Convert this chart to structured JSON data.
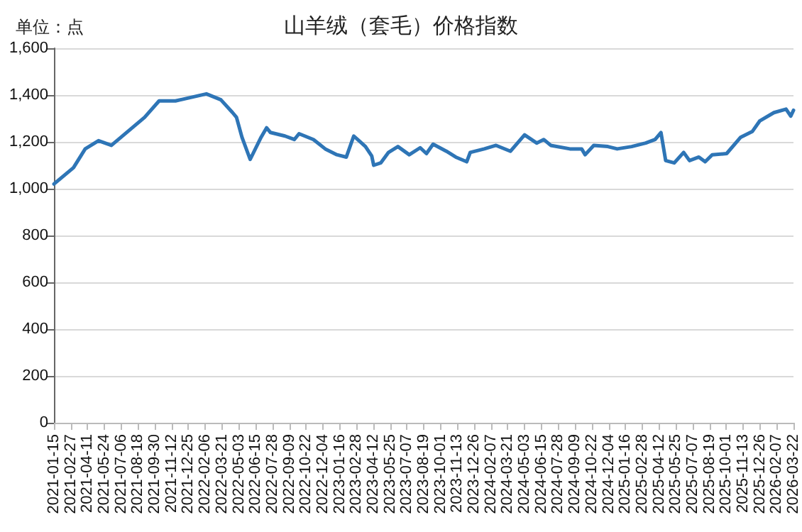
{
  "chart_data": {
    "type": "line",
    "title": "山羊绒（套毛）价格指数",
    "ylabel": "单位：点",
    "x": [
      "2021-01-15",
      "2021-03-06",
      "2021-04-05",
      "2021-05-09",
      "2021-06-11",
      "2021-09-04",
      "2021-10-11",
      "2021-11-22",
      "2022-02-09",
      "2022-03-18",
      "2022-04-17",
      "2022-04-27",
      "2022-05-11",
      "2022-06-01",
      "2022-06-29",
      "2022-07-13",
      "2022-07-23",
      "2022-08-29",
      "2022-09-22",
      "2022-10-04",
      "2022-11-10",
      "2022-12-10",
      "2023-01-09",
      "2023-02-02",
      "2023-02-21",
      "2023-03-23",
      "2023-04-08",
      "2023-04-13",
      "2023-05-01",
      "2023-05-21",
      "2023-06-14",
      "2023-07-13",
      "2023-08-10",
      "2023-08-26",
      "2023-09-12",
      "2023-10-16",
      "2023-11-09",
      "2023-12-07",
      "2023-12-16",
      "2024-01-21",
      "2024-02-20",
      "2024-03-28",
      "2024-05-03",
      "2024-06-03",
      "2024-06-21",
      "2024-07-09",
      "2024-08-27",
      "2024-09-26",
      "2024-10-05",
      "2024-10-27",
      "2024-12-02",
      "2024-12-26",
      "2025-02-01",
      "2025-03-09",
      "2025-04-02",
      "2025-04-17",
      "2025-04-29",
      "2025-05-21",
      "2025-06-14",
      "2025-06-29",
      "2025-07-23",
      "2025-08-08",
      "2025-08-26",
      "2025-10-02",
      "2025-11-07",
      "2025-12-07",
      "2025-12-26",
      "2026-01-31",
      "2026-03-03",
      "2026-03-15",
      "2026-03-22"
    ],
    "series": [
      {
        "color": "#2e75b6",
        "values": [
          1020,
          1090,
          1170,
          1205,
          1185,
          1305,
          1375,
          1375,
          1405,
          1380,
          1325,
          1305,
          1220,
          1125,
          1220,
          1260,
          1240,
          1225,
          1210,
          1235,
          1210,
          1170,
          1145,
          1135,
          1225,
          1180,
          1140,
          1100,
          1110,
          1155,
          1180,
          1145,
          1175,
          1150,
          1190,
          1160,
          1135,
          1115,
          1155,
          1170,
          1185,
          1160,
          1230,
          1195,
          1210,
          1185,
          1170,
          1170,
          1145,
          1185,
          1180,
          1170,
          1180,
          1195,
          1210,
          1240,
          1120,
          1110,
          1155,
          1120,
          1135,
          1115,
          1145,
          1150,
          1220,
          1245,
          1290,
          1325,
          1340,
          1310,
          1335
        ]
      }
    ],
    "xlim": [
      "2021-01-15",
      "2026-03-22"
    ],
    "xticks": [
      "2021-01-15",
      "2021-02-27",
      "2021-04-11",
      "2021-05-24",
      "2021-07-06",
      "2021-08-18",
      "2021-09-30",
      "2021-11-12",
      "2021-12-25",
      "2022-02-06",
      "2022-03-21",
      "2022-05-03",
      "2022-06-15",
      "2022-07-28",
      "2022-09-09",
      "2022-10-22",
      "2022-12-04",
      "2023-01-16",
      "2023-02-28",
      "2023-04-12",
      "2023-05-25",
      "2023-07-07",
      "2023-08-19",
      "2023-10-01",
      "2023-11-13",
      "2023-12-26",
      "2024-02-07",
      "2024-03-21",
      "2024-05-03",
      "2024-06-15",
      "2024-07-28",
      "2024-09-09",
      "2024-10-22",
      "2024-12-04",
      "2025-01-16",
      "2025-02-28",
      "2025-04-12",
      "2025-05-25",
      "2025-07-07",
      "2025-08-19",
      "2025-10-01",
      "2025-11-13",
      "2025-12-26",
      "2026-02-07",
      "2026-03-22"
    ],
    "ylim": [
      0,
      1600
    ],
    "yticks": [
      0,
      {
        "value": 200,
        "label": "200"
      },
      {
        "value": 400,
        "label": "400"
      },
      {
        "value": 600,
        "label": "600"
      },
      {
        "value": 800,
        "label": "800"
      },
      {
        "value": 1000,
        "label": "1,000"
      },
      {
        "value": 1200,
        "label": "1,200"
      },
      {
        "value": 1400,
        "label": "1,400"
      },
      {
        "value": 1600,
        "label": "1,600"
      }
    ],
    "grid": "y",
    "marker": "none",
    "line_style": "solid"
  }
}
